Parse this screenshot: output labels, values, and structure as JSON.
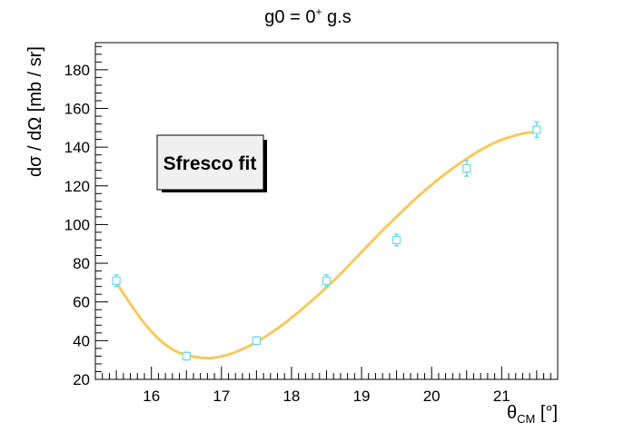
{
  "chart_data": {
    "type": "scatter",
    "title": "g0 = 0",
    "title_superscript": "+",
    "title_suffix": " g.s",
    "xlabel": "θ",
    "xlabel_sub": "CM",
    "xlabel_unit": " [°]",
    "ylabel": "dσ / dΩ [mb / sr]",
    "xlim": [
      15.2,
      21.8
    ],
    "ylim": [
      20,
      194
    ],
    "x_ticks": [
      16,
      17,
      18,
      19,
      20,
      21
    ],
    "y_ticks": [
      20,
      40,
      60,
      80,
      100,
      120,
      140,
      160,
      180
    ],
    "grid": false,
    "legend": {
      "label": "Sfresco fit",
      "placement": "upper-left"
    },
    "colors": {
      "data": "#6fd9ee",
      "fit": "#f7c95e"
    },
    "series": [
      {
        "kind": "points",
        "x": [
          15.5,
          16.5,
          17.5,
          18.5,
          19.5,
          20.5,
          21.5
        ],
        "y": [
          71,
          32,
          40,
          71,
          92,
          129,
          149
        ],
        "err": [
          3,
          2,
          2,
          3,
          3,
          4,
          4
        ]
      },
      {
        "name": "Sfresco fit",
        "kind": "line",
        "x": [
          15.5,
          15.7,
          15.9,
          16.1,
          16.3,
          16.5,
          16.7,
          16.8,
          16.9,
          17.1,
          17.3,
          17.5,
          17.7,
          17.9,
          18.1,
          18.3,
          18.5,
          18.7,
          18.9,
          19.1,
          19.3,
          19.5,
          19.7,
          19.9,
          20.1,
          20.3,
          20.5,
          20.7,
          20.9,
          21.1,
          21.3,
          21.5
        ],
        "y": [
          70,
          59,
          49,
          41,
          35.5,
          32.5,
          31.2,
          31,
          31.2,
          32.8,
          35.6,
          39.3,
          43.8,
          49,
          54.8,
          61,
          67.5,
          74.5,
          82,
          89.5,
          97,
          104,
          111,
          117.5,
          123.5,
          129,
          134,
          138.5,
          142.3,
          145,
          147,
          148
        ]
      }
    ]
  }
}
